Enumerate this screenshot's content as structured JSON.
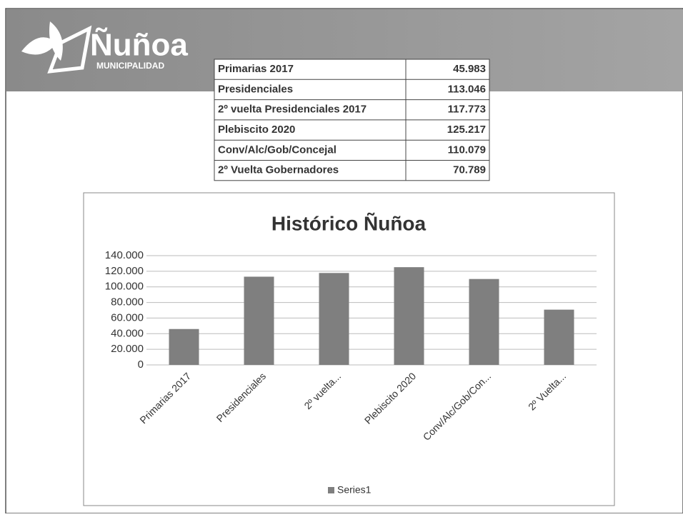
{
  "header": {
    "logo_title": "Ñuñoa",
    "logo_subtitle": "MUNICIPALIDAD"
  },
  "table": {
    "rows": [
      [
        "Primarias 2017",
        "45.983"
      ],
      [
        "Presidenciales",
        "113.046"
      ],
      [
        "2º vuelta Presidenciales 2017",
        "117.773"
      ],
      [
        "Plebiscito 2020",
        "125.217"
      ],
      [
        "Conv/Alc/Gob/Concejal",
        "110.079"
      ],
      [
        "2º Vuelta Gobernadores",
        "70.789"
      ]
    ]
  },
  "chart_data": {
    "type": "bar",
    "title": "Histórico Ñuñoa",
    "categories": [
      "Primarias 2017",
      "Presidenciales",
      "2º vuelta...",
      "Plebiscito 2020",
      "Conv/Alc/Gob/Con...",
      "2º Vuelta..."
    ],
    "series": [
      {
        "name": "Series1",
        "color": "#7f7f7f",
        "values": [
          45983,
          113046,
          117773,
          125217,
          110079,
          70789
        ]
      }
    ],
    "ylim": [
      0,
      140000
    ],
    "yticks": [
      0,
      {
        "value": 20000,
        "label": "20.000"
      },
      {
        "value": 40000,
        "label": "40.000"
      },
      {
        "value": 60000,
        "label": "60.000"
      },
      {
        "value": 80000,
        "label": "80.000"
      },
      {
        "value": 100000,
        "label": "100.000"
      },
      {
        "value": 120000,
        "label": "120.000"
      },
      {
        "value": 140000,
        "label": "140.000"
      }
    ],
    "grid": true,
    "legend": "bottom"
  }
}
